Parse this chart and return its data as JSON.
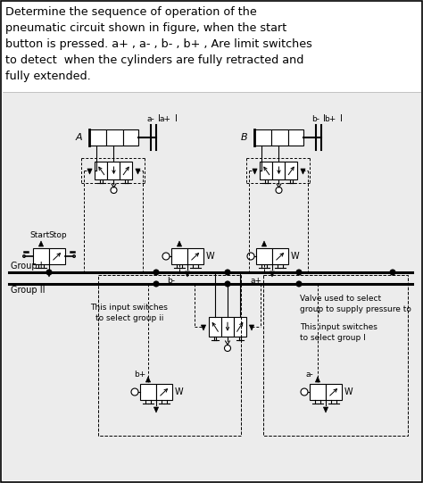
{
  "title_text": "Determine the sequence of operation of the\npneumatic circuit shown in figure, when the start\nbutton is pressed. a+ , a- , b- , b+ , Are limit switches\nto detect  when the cylinders are fully retracted and\nfully extended.",
  "bg_color": "#f0f0f0",
  "diagram_bg": "#e8e8e8",
  "border_color": "#000000",
  "text_color": "#000000",
  "fig_width": 4.74,
  "fig_height": 5.41,
  "dpi": 100,
  "title_fontsize": 9.2,
  "group1_label": "Group I",
  "group2_label": "Group II",
  "start_label": "Start",
  "stop_label": "Stop",
  "label_a": "A",
  "label_b": "B",
  "label_a_minus": "a-",
  "label_a_plus": "a+",
  "label_b_minus": "b-",
  "label_b_plus": "b+",
  "annotation1": "This input switches\nto select group ii",
  "annotation2": "Valve used to select\ngroup to supply pressure to",
  "annotation3": "This input switches\nto select group I"
}
